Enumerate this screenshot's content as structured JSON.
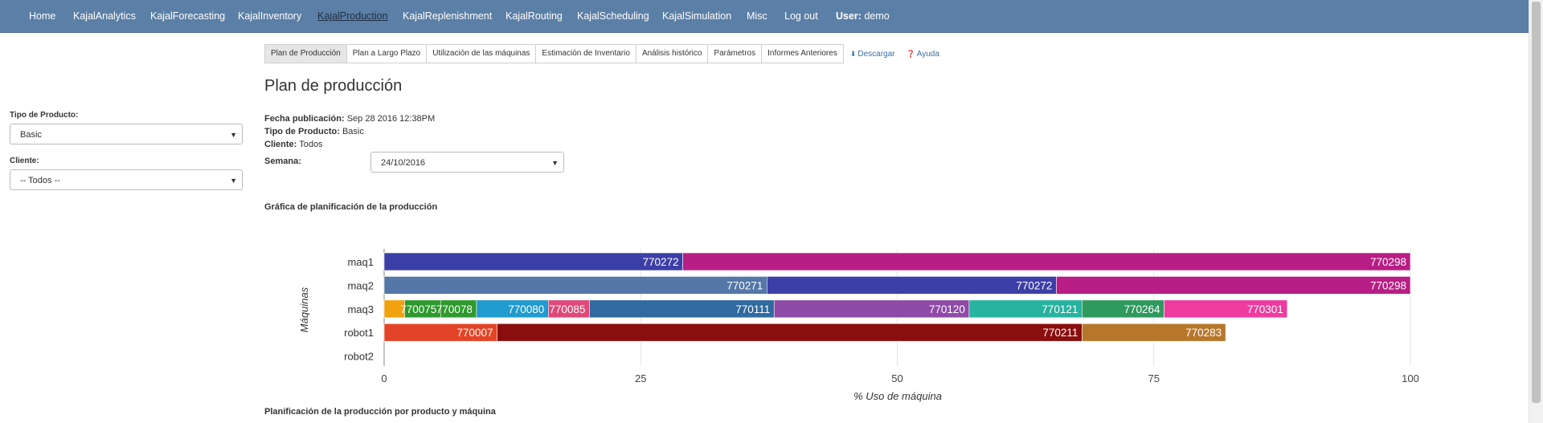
{
  "nav": {
    "items": [
      "Home",
      "KajalAnalytics",
      "KajalForecasting",
      "KajalInventory",
      "KajalProduction",
      "KajalReplenishment",
      "KajalRouting",
      "KajalScheduling",
      "KajalSimulation",
      "Misc",
      "Log out"
    ],
    "active": "KajalProduction",
    "user_label": "User:",
    "user_name": "demo"
  },
  "tabs": {
    "items": [
      "Plan de Producción",
      "Plan a Largo Plazo",
      "Utilización de las máquinas",
      "Estimación de Inventario",
      "Análisis histórico",
      "Parámetros",
      "Informes Anteriores"
    ],
    "active": "Plan de Producción",
    "download": "Descargar",
    "help": "Ayuda"
  },
  "sidebar": {
    "product_type_label": "Tipo de Producto:",
    "product_type_value": "Basic",
    "client_label": "Cliente:",
    "client_value": "-- Todos --"
  },
  "page": {
    "title": "Plan de producción",
    "fecha_label": "Fecha publicación:",
    "fecha_value": "Sep 28 2016 12:38PM",
    "tipo_label": "Tipo de Producto:",
    "tipo_value": "Basic",
    "cliente_label": "Cliente:",
    "cliente_value": "Todos",
    "semana_label": "Semana:",
    "semana_value": "24/10/2016",
    "chart_section_title": "Gráfica de planificación de la producción",
    "table_section_title": "Planificación de la producción por producto y máquina"
  },
  "chart_data": {
    "type": "bar",
    "orientation": "horizontal",
    "stacked": true,
    "categories": [
      "maq1",
      "maq2",
      "maq3",
      "robot1",
      "robot2"
    ],
    "xlabel": "% Uso de máquina",
    "ylabel": "Máquinas",
    "xlim": [
      0,
      100
    ],
    "xticks": [
      0,
      25,
      50,
      75,
      100
    ],
    "grid": true,
    "bars": [
      {
        "category": "maq1",
        "segments": [
          {
            "label": "770272",
            "value": 29.1,
            "color": "#3d3fa8"
          },
          {
            "label": "770298",
            "value": 70.9,
            "color": "#b81e85"
          }
        ]
      },
      {
        "category": "maq2",
        "segments": [
          {
            "label": "770271",
            "value": 37.3,
            "color": "#5577a8"
          },
          {
            "label": "770272",
            "value": 28.2,
            "color": "#3d3fa8"
          },
          {
            "label": "770298",
            "value": 34.5,
            "color": "#b81e85"
          }
        ]
      },
      {
        "category": "maq3",
        "segments": [
          {
            "label": "",
            "value": 2.0,
            "color": "#f2a10f"
          },
          {
            "label": "770075",
            "value": 3.5,
            "color": "#2d9a2d"
          },
          {
            "label": "770078",
            "value": 3.5,
            "color": "#2d9a2d"
          },
          {
            "label": "770080",
            "value": 7.0,
            "color": "#1f9bcf"
          },
          {
            "label": "770085",
            "value": 4.0,
            "color": "#e0487a"
          },
          {
            "label": "770111",
            "value": 18.0,
            "color": "#2f6aa0"
          },
          {
            "label": "770120",
            "value": 19.0,
            "color": "#8f4aa8"
          },
          {
            "label": "770121",
            "value": 11.0,
            "color": "#26b3a0"
          },
          {
            "label": "770264",
            "value": 8.0,
            "color": "#2e9a5e"
          },
          {
            "label": "770301",
            "value": 12.0,
            "color": "#ef3aa0"
          }
        ]
      },
      {
        "category": "robot1",
        "segments": [
          {
            "label": "770007",
            "value": 11.0,
            "color": "#e34427"
          },
          {
            "label": "770211",
            "value": 57.0,
            "color": "#8b0e0e"
          },
          {
            "label": "770283",
            "value": 14.0,
            "color": "#b7772b"
          }
        ]
      },
      {
        "category": "robot2",
        "segments": []
      }
    ]
  }
}
